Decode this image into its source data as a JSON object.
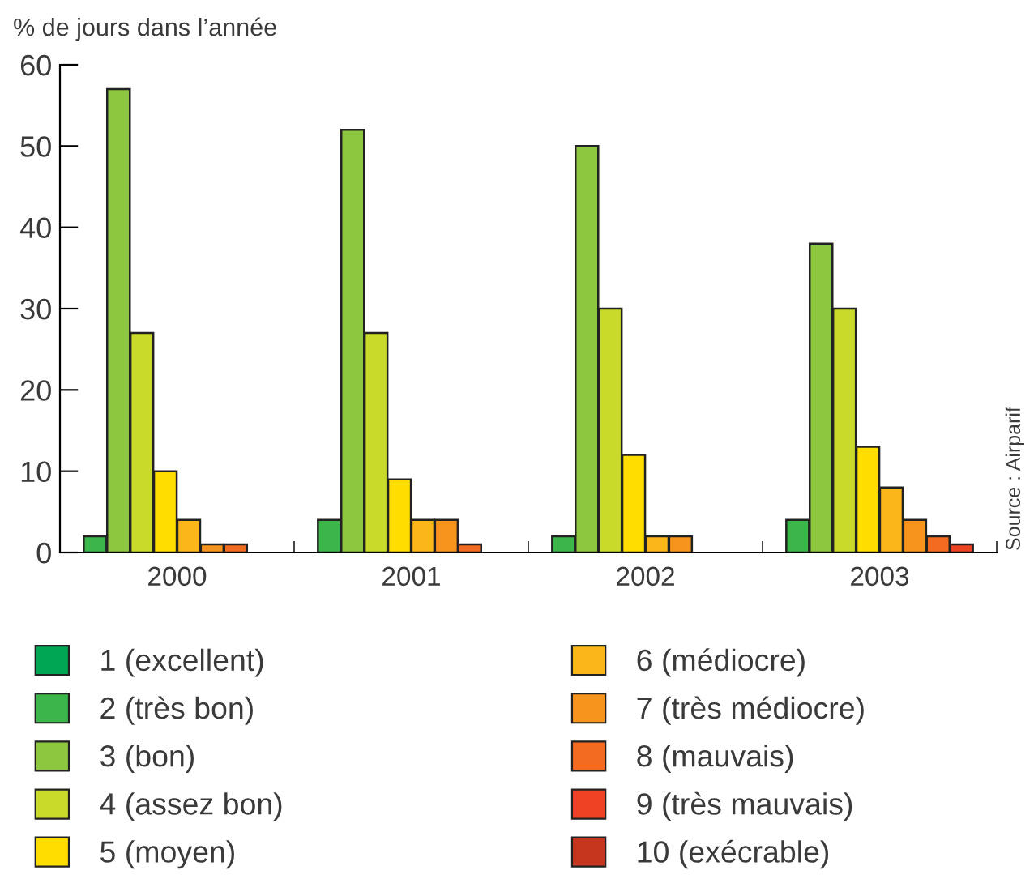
{
  "chart_data": {
    "type": "bar",
    "ylabel": "% de jours dans l’année",
    "categories": [
      "2000",
      "2001",
      "2002",
      "2003"
    ],
    "ylim": [
      0,
      60
    ],
    "yticks": [
      0,
      10,
      20,
      30,
      40,
      50,
      60
    ],
    "grid": false,
    "legend": "bottom",
    "annotations": [
      "Source : Airparif"
    ],
    "series": [
      {
        "name": "1 (excellent)",
        "color": "#00a651",
        "values": [
          0,
          0,
          0,
          0
        ]
      },
      {
        "name": "2 (très bon)",
        "color": "#3cb54a",
        "values": [
          2,
          4,
          2,
          4
        ]
      },
      {
        "name": "3 (bon)",
        "color": "#8dc63f",
        "values": [
          57,
          52,
          50,
          38
        ]
      },
      {
        "name": "4 (assez bon)",
        "color": "#c9da2a",
        "values": [
          27,
          27,
          30,
          30
        ]
      },
      {
        "name": "5 (moyen)",
        "color": "#ffdd00",
        "values": [
          10,
          9,
          12,
          13
        ]
      },
      {
        "name": "6 (médiocre)",
        "color": "#fbb71a",
        "values": [
          4,
          4,
          2,
          8
        ]
      },
      {
        "name": "7 (très médiocre)",
        "color": "#f7941d",
        "values": [
          1,
          4,
          2,
          4
        ]
      },
      {
        "name": "8 (mauvais)",
        "color": "#f26b21",
        "values": [
          1,
          1,
          0,
          2
        ]
      },
      {
        "name": "9 (très mauvais)",
        "color": "#ef4123",
        "values": [
          0,
          0,
          0,
          1
        ]
      },
      {
        "name": "10 (exécrable)",
        "color": "#c6361f",
        "values": [
          0,
          0,
          0,
          0
        ]
      }
    ]
  }
}
